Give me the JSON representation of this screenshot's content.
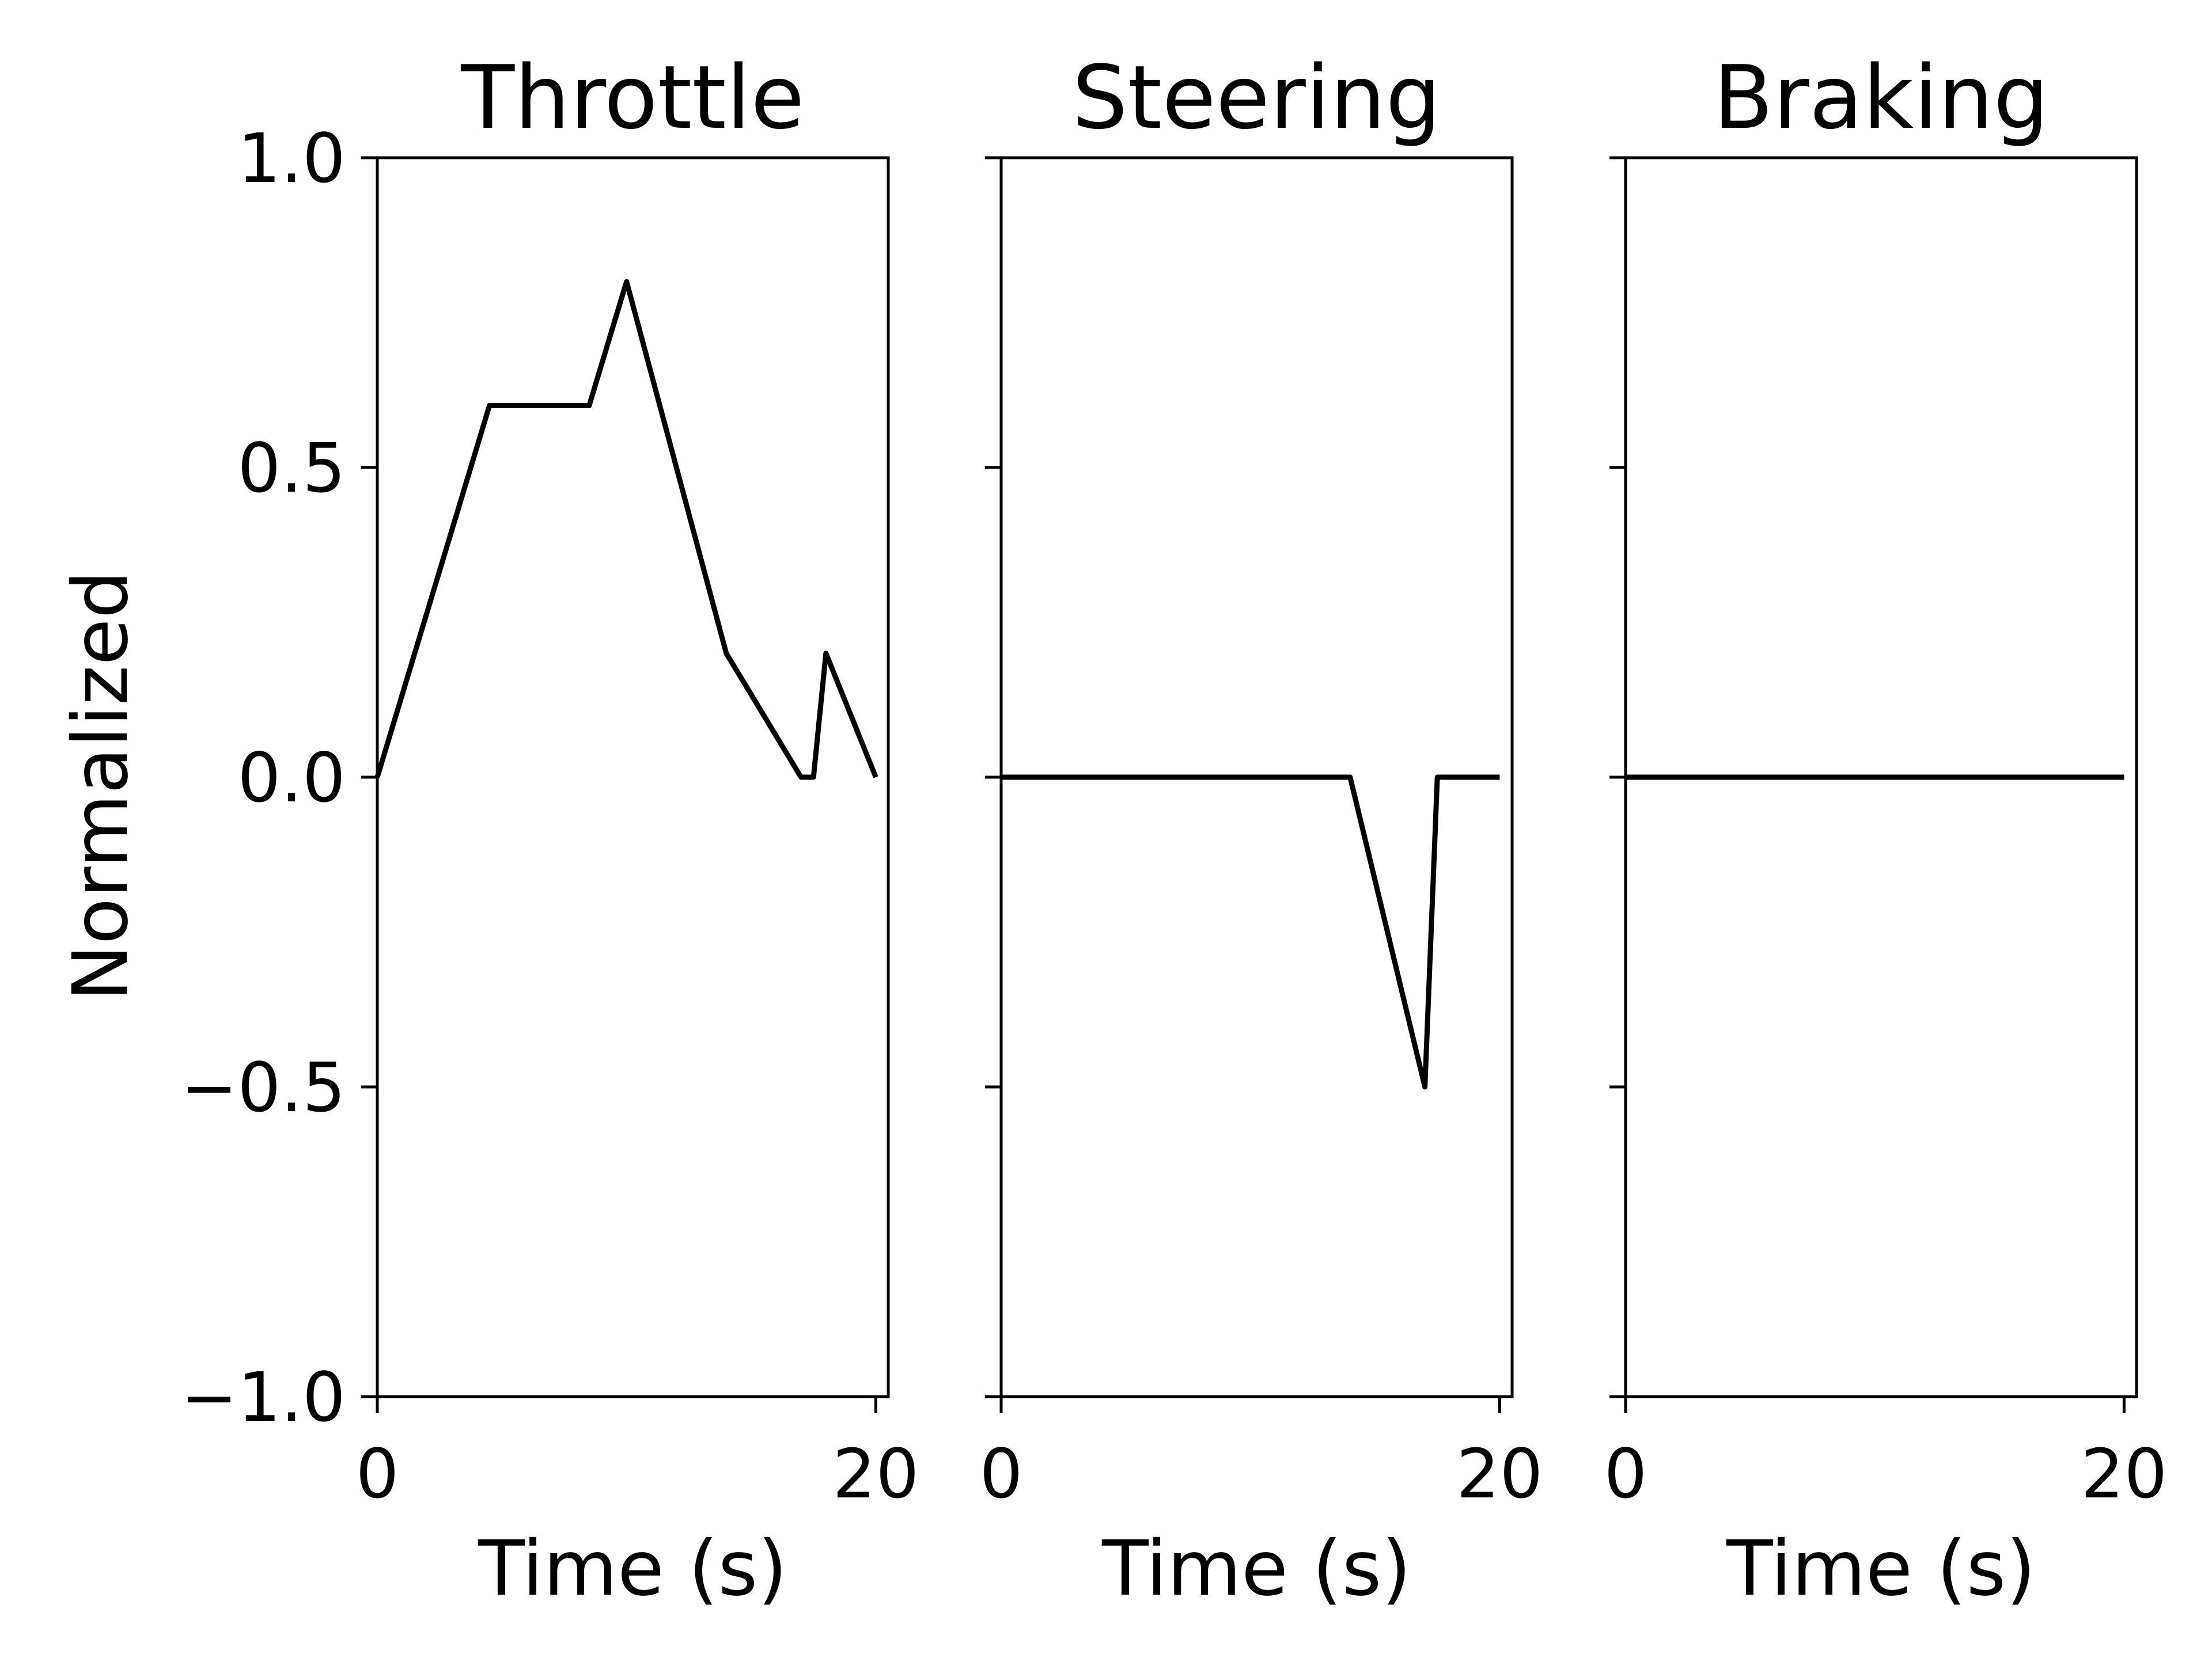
{
  "figure": {
    "ylabel": "Normalized"
  },
  "chart_data": [
    {
      "type": "line",
      "title": "Throttle",
      "xlabel": "Time (s)",
      "ylabel": "Normalized",
      "xlim": [
        0,
        20.5
      ],
      "ylim": [
        -1.0,
        1.0
      ],
      "xticks": [
        0,
        20
      ],
      "yticks": [
        -1.0,
        -0.5,
        0.0,
        0.5,
        1.0
      ],
      "show_yticklabels": true,
      "grid": false,
      "color": "#000000",
      "series": [
        {
          "x": [
            0,
            4.5,
            8.5,
            10,
            14,
            17,
            17.5,
            18,
            20
          ],
          "y": [
            0.0,
            0.6,
            0.6,
            0.8,
            0.2,
            0.0,
            0.0,
            0.2,
            0.0
          ]
        }
      ]
    },
    {
      "type": "line",
      "title": "Steering",
      "xlabel": "Time (s)",
      "xlim": [
        0,
        20.5
      ],
      "ylim": [
        -1.0,
        1.0
      ],
      "xticks": [
        0,
        20
      ],
      "yticks": [
        -1.0,
        -0.5,
        0.0,
        0.5,
        1.0
      ],
      "show_yticklabels": false,
      "grid": false,
      "color": "#000000",
      "series": [
        {
          "x": [
            0,
            14,
            17,
            17.5,
            20
          ],
          "y": [
            0.0,
            0.0,
            -0.5,
            0.0,
            0.0
          ]
        }
      ]
    },
    {
      "type": "line",
      "title": "Braking",
      "xlabel": "Time (s)",
      "xlim": [
        0,
        20.5
      ],
      "ylim": [
        -1.0,
        1.0
      ],
      "xticks": [
        0,
        20
      ],
      "yticks": [
        -1.0,
        -0.5,
        0.0,
        0.5,
        1.0
      ],
      "show_yticklabels": false,
      "grid": false,
      "color": "#000000",
      "series": [
        {
          "x": [
            0,
            20
          ],
          "y": [
            0.0,
            0.0
          ]
        }
      ]
    }
  ]
}
